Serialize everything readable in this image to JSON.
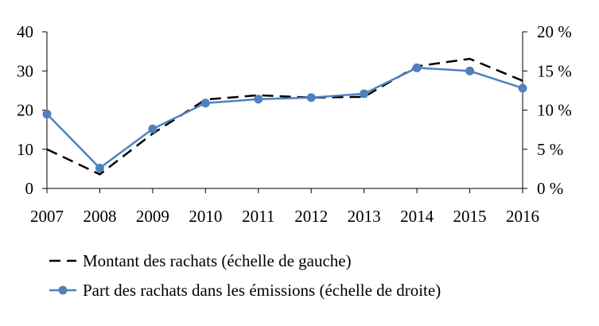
{
  "chart_data": {
    "type": "line",
    "title": "",
    "x": [
      "2007",
      "2008",
      "2009",
      "2010",
      "2011",
      "2012",
      "2013",
      "2014",
      "2015",
      "2016"
    ],
    "y_left": {
      "ylim": [
        0,
        40
      ],
      "ticks": [
        "0",
        "10",
        "20",
        "30",
        "40"
      ]
    },
    "y_right": {
      "ylim": [
        0,
        20
      ],
      "ticks": [
        "0 %",
        "5 %",
        "10 %",
        "15 %",
        "20 %"
      ]
    },
    "grid": false,
    "legend_position": "bottom",
    "series": [
      {
        "name": "Montant des rachats (échelle de gauche)",
        "axis": "left",
        "style": "dashed",
        "color": "#000000",
        "values": [
          10,
          3.6,
          14,
          22.7,
          23.8,
          23.2,
          23.4,
          31.2,
          33.1,
          27.5
        ]
      },
      {
        "name": "Part des rachats dans les émissions (échelle de droite)",
        "axis": "right",
        "style": "solid-markers",
        "color": "#4f81bd",
        "values": [
          9.5,
          2.6,
          7.6,
          10.9,
          11.4,
          11.6,
          12.1,
          15.4,
          15.0,
          12.8
        ]
      }
    ]
  }
}
